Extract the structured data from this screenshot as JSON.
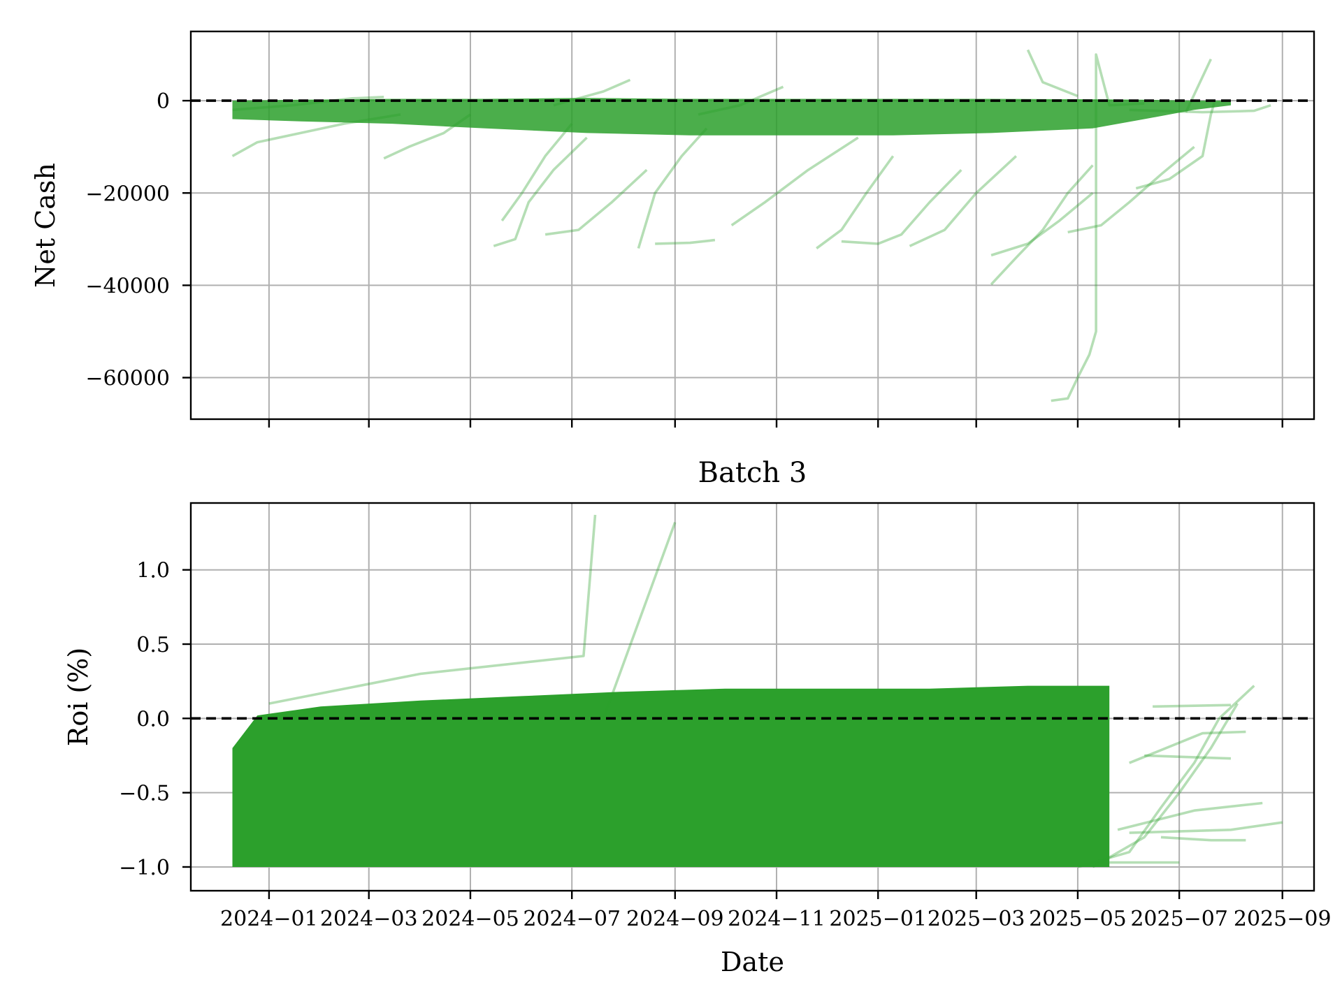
{
  "chart_data": [
    {
      "type": "line",
      "ylabel": "Net Cash",
      "xlabel": "",
      "title": "",
      "ylim": [
        -69000,
        15000
      ],
      "xlim": [
        "2023-11-15",
        "2025-09-20"
      ],
      "yticks": [
        0,
        -20000,
        -40000,
        -60000
      ],
      "ytick_labels": [
        "0",
        "−20000",
        "−40000",
        "−60000"
      ],
      "reference_line": 0,
      "grid": true,
      "colors": {
        "series": "#2ca02c",
        "reference": "#000000"
      },
      "series": [
        {
          "points": [
            [
              "2023-12-10",
              -12000
            ],
            [
              "2023-12-25",
              -9000
            ],
            [
              "2024-01-20",
              -7000
            ],
            [
              "2024-02-15",
              -5000
            ],
            [
              "2024-03-20",
              -3000
            ]
          ]
        },
        {
          "points": [
            [
              "2023-12-10",
              -2000
            ],
            [
              "2024-01-15",
              -1000
            ],
            [
              "2024-02-20",
              500
            ],
            [
              "2024-03-10",
              800
            ]
          ]
        },
        {
          "points": [
            [
              "2024-03-10",
              -12500
            ],
            [
              "2024-03-25",
              -10000
            ],
            [
              "2024-04-15",
              -7000
            ],
            [
              "2024-05-01",
              -3000
            ]
          ]
        },
        {
          "points": [
            [
              "2024-05-15",
              -31500
            ],
            [
              "2024-05-28",
              -30000
            ],
            [
              "2024-06-05",
              -22000
            ],
            [
              "2024-06-20",
              -15000
            ],
            [
              "2024-07-10",
              -8000
            ]
          ]
        },
        {
          "points": [
            [
              "2024-05-20",
              -26000
            ],
            [
              "2024-06-01",
              -20000
            ],
            [
              "2024-06-15",
              -12000
            ],
            [
              "2024-07-01",
              -5000
            ]
          ]
        },
        {
          "points": [
            [
              "2024-06-15",
              -29000
            ],
            [
              "2024-07-05",
              -28000
            ],
            [
              "2024-07-25",
              -22000
            ],
            [
              "2024-08-15",
              -15000
            ]
          ]
        },
        {
          "points": [
            [
              "2024-08-20",
              -31000
            ],
            [
              "2024-09-10",
              -30800
            ],
            [
              "2024-09-25",
              -30200
            ]
          ]
        },
        {
          "points": [
            [
              "2024-08-10",
              -32000
            ],
            [
              "2024-08-20",
              -20000
            ],
            [
              "2024-09-05",
              -12000
            ],
            [
              "2024-09-20",
              -6000
            ]
          ]
        },
        {
          "points": [
            [
              "2024-10-05",
              -27000
            ],
            [
              "2024-10-25",
              -22000
            ],
            [
              "2024-11-20",
              -15000
            ],
            [
              "2024-12-20",
              -8000
            ]
          ]
        },
        {
          "points": [
            [
              "2024-11-25",
              -32000
            ],
            [
              "2024-12-10",
              -28000
            ],
            [
              "2024-12-25",
              -20000
            ],
            [
              "2025-01-10",
              -12000
            ]
          ]
        },
        {
          "points": [
            [
              "2024-12-10",
              -30500
            ],
            [
              "2025-01-01",
              -31000
            ],
            [
              "2025-01-15",
              -29000
            ],
            [
              "2025-02-01",
              -22000
            ],
            [
              "2025-02-20",
              -15000
            ]
          ]
        },
        {
          "points": [
            [
              "2025-01-20",
              -31500
            ],
            [
              "2025-02-10",
              -28000
            ],
            [
              "2025-03-01",
              -20000
            ],
            [
              "2025-03-25",
              -12000
            ]
          ]
        },
        {
          "points": [
            [
              "2025-03-10",
              -39800
            ],
            [
              "2025-03-25",
              -34000
            ],
            [
              "2025-04-10",
              -28000
            ],
            [
              "2025-04-25",
              -20000
            ],
            [
              "2025-05-10",
              -14000
            ]
          ]
        },
        {
          "points": [
            [
              "2025-03-10",
              -33500
            ],
            [
              "2025-04-01",
              -31000
            ],
            [
              "2025-04-20",
              -26000
            ],
            [
              "2025-05-10",
              -20000
            ]
          ]
        },
        {
          "points": [
            [
              "2025-04-15",
              -65000
            ],
            [
              "2025-04-25",
              -64500
            ],
            [
              "2025-05-01",
              -60000
            ],
            [
              "2025-05-08",
              -55000
            ],
            [
              "2025-05-12",
              -50000
            ],
            [
              "2025-05-12",
              10000
            ],
            [
              "2025-05-20",
              -1000
            ],
            [
              "2025-06-10",
              -600
            ]
          ]
        },
        {
          "points": [
            [
              "2025-04-25",
              -28500
            ],
            [
              "2025-05-15",
              -27000
            ],
            [
              "2025-06-01",
              -22000
            ],
            [
              "2025-06-20",
              -16000
            ],
            [
              "2025-07-10",
              -10000
            ]
          ]
        },
        {
          "points": [
            [
              "2025-06-05",
              -19000
            ],
            [
              "2025-06-25",
              -17000
            ],
            [
              "2025-07-15",
              -12000
            ],
            [
              "2025-07-20",
              -3000
            ],
            [
              "2025-07-22",
              -500
            ]
          ]
        },
        {
          "points": [
            [
              "2025-07-05",
              -2500
            ],
            [
              "2025-07-20",
              9000
            ]
          ]
        },
        {
          "points": [
            [
              "2025-06-01",
              -2000
            ],
            [
              "2025-07-15",
              -2500
            ],
            [
              "2025-08-15",
              -2200
            ],
            [
              "2025-08-25",
              -1000
            ]
          ]
        },
        {
          "points": [
            [
              "2025-04-01",
              11000
            ],
            [
              "2025-04-10",
              4000
            ],
            [
              "2025-05-01",
              1000
            ]
          ]
        },
        {
          "points": [
            [
              "2024-06-20",
              -1000
            ],
            [
              "2024-07-20",
              2000
            ],
            [
              "2024-08-05",
              4500
            ]
          ]
        },
        {
          "points": [
            [
              "2024-09-15",
              -3000
            ],
            [
              "2024-10-10",
              -1000
            ],
            [
              "2024-11-05",
              3000
            ]
          ]
        }
      ],
      "band": {
        "x": [
          "2023-12-10",
          "2024-01-20",
          "2024-03-15",
          "2024-05-10",
          "2024-07-10",
          "2024-09-10",
          "2024-11-10",
          "2025-01-10",
          "2025-03-10",
          "2025-05-10",
          "2025-06-10",
          "2025-07-10",
          "2025-08-01"
        ],
        "upper": [
          0,
          200,
          400,
          400,
          600,
          400,
          400,
          400,
          400,
          300,
          200,
          0,
          0
        ],
        "lower": [
          -4000,
          -4500,
          -5000,
          -6000,
          -7000,
          -7500,
          -7500,
          -7500,
          -7000,
          -6000,
          -4000,
          -2000,
          -1000
        ]
      }
    },
    {
      "type": "line",
      "title": "Batch 3",
      "ylabel": "Roi (%)",
      "xlabel": "Date",
      "ylim": [
        -1.16,
        1.45
      ],
      "xlim": [
        "2023-11-15",
        "2025-09-20"
      ],
      "yticks": [
        1.0,
        0.5,
        0.0,
        -0.5,
        -1.0
      ],
      "ytick_labels": [
        "1.0",
        "0.5",
        "0.0",
        "−0.5",
        "−1.0"
      ],
      "x_tick_labels": [
        "2024−01",
        "2024−03",
        "2024−05",
        "2024−07",
        "2024−09",
        "2024−11",
        "2025−01",
        "2025−03",
        "2025−05",
        "2025−07",
        "2025−09"
      ],
      "reference_line": 0,
      "grid": true,
      "colors": {
        "series": "#2ca02c",
        "reference": "#000000"
      },
      "band": {
        "x": [
          "2023-12-10",
          "2023-12-25",
          "2024-02-01",
          "2024-04-01",
          "2024-06-01",
          "2024-08-01",
          "2024-10-01",
          "2024-12-01",
          "2025-02-01",
          "2025-04-01",
          "2025-05-20"
        ],
        "upper": [
          -0.2,
          0.02,
          0.08,
          0.12,
          0.15,
          0.18,
          0.2,
          0.2,
          0.2,
          0.22,
          0.22
        ],
        "lower": [
          -1.0,
          -1.0,
          -1.0,
          -1.0,
          -1.0,
          -1.0,
          -1.0,
          -1.0,
          -1.0,
          -1.0,
          -1.0
        ]
      },
      "series": [
        {
          "points": [
            [
              "2024-01-01",
              0.1
            ],
            [
              "2024-04-01",
              0.3
            ],
            [
              "2024-07-08",
              0.42
            ],
            [
              "2024-07-15",
              1.37
            ]
          ]
        },
        {
          "points": [
            [
              "2024-07-20",
              0.0
            ],
            [
              "2024-09-01",
              1.32
            ]
          ]
        },
        {
          "points": [
            [
              "2025-05-01",
              -1.0
            ],
            [
              "2025-06-01",
              -0.9
            ],
            [
              "2025-06-20",
              -0.6
            ],
            [
              "2025-07-10",
              -0.3
            ],
            [
              "2025-07-25",
              0.0
            ],
            [
              "2025-08-15",
              0.22
            ]
          ]
        },
        {
          "points": [
            [
              "2025-05-10",
              -1.0
            ],
            [
              "2025-06-10",
              -0.8
            ],
            [
              "2025-07-01",
              -0.5
            ],
            [
              "2025-07-20",
              -0.2
            ],
            [
              "2025-08-05",
              0.1
            ]
          ]
        },
        {
          "points": [
            [
              "2025-05-20",
              -0.97
            ],
            [
              "2025-07-01",
              -0.97
            ]
          ]
        },
        {
          "points": [
            [
              "2025-05-25",
              -0.75
            ],
            [
              "2025-07-10",
              -0.62
            ],
            [
              "2025-08-20",
              -0.57
            ]
          ]
        },
        {
          "points": [
            [
              "2025-06-01",
              -0.77
            ],
            [
              "2025-08-01",
              -0.75
            ],
            [
              "2025-09-01",
              -0.7
            ]
          ]
        },
        {
          "points": [
            [
              "2025-06-01",
              -0.3
            ],
            [
              "2025-07-15",
              -0.1
            ],
            [
              "2025-08-10",
              -0.09
            ]
          ]
        },
        {
          "points": [
            [
              "2025-06-10",
              -0.25
            ],
            [
              "2025-07-05",
              -0.26
            ],
            [
              "2025-08-01",
              -0.27
            ]
          ]
        },
        {
          "points": [
            [
              "2025-06-15",
              0.08
            ],
            [
              "2025-08-01",
              0.09
            ]
          ]
        },
        {
          "points": [
            [
              "2025-06-20",
              -0.8
            ],
            [
              "2025-07-20",
              -0.82
            ],
            [
              "2025-08-10",
              -0.82
            ]
          ]
        }
      ]
    }
  ]
}
